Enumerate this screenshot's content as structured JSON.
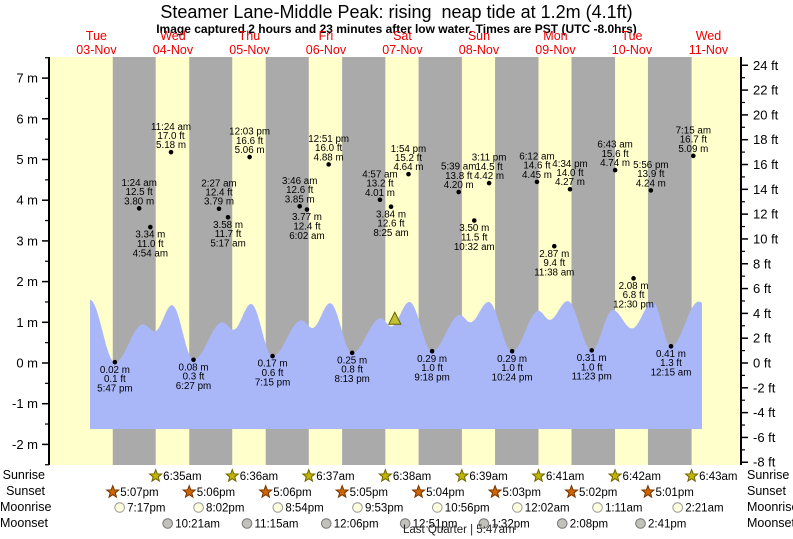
{
  "title": "Steamer Lane-Middle Peak: rising  neap tide at 1.2m (4.1ft)",
  "subtitle": "Image captured 2 hours and 23 minutes after low water. Times are PST (UTC -8.0hrs)",
  "days": [
    {
      "name": "Tue",
      "date": "03-Nov"
    },
    {
      "name": "Wed",
      "date": "04-Nov"
    },
    {
      "name": "Thu",
      "date": "05-Nov"
    },
    {
      "name": "Fri",
      "date": "06-Nov"
    },
    {
      "name": "Sat",
      "date": "07-Nov"
    },
    {
      "name": "Sun",
      "date": "08-Nov"
    },
    {
      "name": "Mon",
      "date": "09-Nov"
    },
    {
      "name": "Tue",
      "date": "10-Nov"
    },
    {
      "name": "Wed",
      "date": "11-Nov"
    }
  ],
  "row_labels": {
    "sunrise": "Sunrise",
    "sunset": "Sunset",
    "moonrise": "Moonrise",
    "moonset": "Moonset"
  },
  "moon_phase": "Last Quarter | 5:47am",
  "colors": {
    "day_bg": "#ffffcc",
    "night_bg": "#aaaaaa",
    "tide_fill": "#a9b7f8",
    "day_label": "#ee0000",
    "annotation": "#000000",
    "sunrise_star_fill": "#c3b400",
    "sunrise_star_stroke": "#6e6400",
    "sunset_star_fill": "#cc6600",
    "sunset_star_stroke": "#773300",
    "moonrise_circle_fill": "#ffffdd",
    "moonrise_circle_stroke": "#999999",
    "moonset_circle_fill": "#c2c2ba",
    "moonset_circle_stroke": "#777777",
    "current_marker_fill": "#c2c232",
    "current_marker_stroke": "#5f5f00"
  },
  "chart_data": {
    "type": "area",
    "title": "Steamer Lane-Middle Peak tide curve",
    "y_axis_left": {
      "unit": "m",
      "ticks": [
        7,
        6,
        5,
        4,
        3,
        2,
        1,
        0,
        -1,
        -2
      ],
      "minor_step": 0.5,
      "range": [
        -2.51,
        7.52
      ]
    },
    "y_axis_right": {
      "unit": "ft",
      "ticks": [
        24,
        22,
        20,
        18,
        16,
        14,
        12,
        10,
        8,
        6,
        4,
        2,
        0,
        -2,
        -4,
        -6,
        -8
      ],
      "minor_step": 1,
      "range": [
        -8.2,
        24.7
      ]
    },
    "x_axis": {
      "unit": "days",
      "start_day": "Tue 03-Nov",
      "end_day": "Wed 11-Nov"
    },
    "tide_curve_extremes": [
      {
        "t": 9.98,
        "h": 1.55
      },
      {
        "t": 17.783,
        "h": 0.02
      },
      {
        "t": 26.6,
        "h": 0.95
      },
      {
        "t": 30.3,
        "h": 0.78
      },
      {
        "t": 35.7,
        "h": 1.42
      },
      {
        "t": 42.45,
        "h": 0.08
      },
      {
        "t": 51.5,
        "h": 1.0
      },
      {
        "t": 55.0,
        "h": 0.82
      },
      {
        "t": 60.5,
        "h": 1.45
      },
      {
        "t": 67.25,
        "h": 0.17
      },
      {
        "t": 76.3,
        "h": 1.05
      },
      {
        "t": 79.75,
        "h": 0.86
      },
      {
        "t": 85.3,
        "h": 1.47
      },
      {
        "t": 92.217,
        "h": 0.25
      },
      {
        "t": 101.2,
        "h": 1.1
      },
      {
        "t": 104.5,
        "h": 0.9
      },
      {
        "t": 110.2,
        "h": 1.5
      },
      {
        "t": 117.3,
        "h": 0.29
      },
      {
        "t": 126.0,
        "h": 1.18
      },
      {
        "t": 129.3,
        "h": 1.0
      },
      {
        "t": 135.0,
        "h": 1.5
      },
      {
        "t": 142.4,
        "h": 0.29
      },
      {
        "t": 150.7,
        "h": 1.28
      },
      {
        "t": 154.2,
        "h": 1.06
      },
      {
        "t": 159.8,
        "h": 1.52
      },
      {
        "t": 167.383,
        "h": 0.31
      },
      {
        "t": 174.0,
        "h": 1.3
      },
      {
        "t": 180.0,
        "h": 0.85
      },
      {
        "t": 186.5,
        "h": 1.5
      },
      {
        "t": 192.25,
        "h": 0.41
      },
      {
        "t": 201.0,
        "h": 1.51
      },
      {
        "t": 202.0,
        "h": 1.48
      }
    ],
    "low_tide_annotations": [
      {
        "t": 17.783,
        "h": 0.02,
        "lines": [
          "0.02 m",
          "0.1 ft",
          "5:47 pm"
        ]
      },
      {
        "t": 42.45,
        "h": 0.08,
        "lines": [
          "0.08 m",
          "0.3 ft",
          "6:27 pm"
        ]
      },
      {
        "t": 67.25,
        "h": 0.17,
        "lines": [
          "0.17 m",
          "0.6 ft",
          "7:15 pm"
        ]
      },
      {
        "t": 92.217,
        "h": 0.25,
        "lines": [
          "0.25 m",
          "0.8 ft",
          "8:13 pm"
        ]
      },
      {
        "t": 117.3,
        "h": 0.29,
        "lines": [
          "0.29 m",
          "1.0 ft",
          "9:18 pm"
        ]
      },
      {
        "t": 142.4,
        "h": 0.29,
        "lines": [
          "0.29 m",
          "1.0 ft",
          "10:24 pm"
        ]
      },
      {
        "t": 167.383,
        "h": 0.31,
        "lines": [
          "0.31 m",
          "1.0 ft",
          "11:23 pm"
        ]
      },
      {
        "t": 192.25,
        "h": 0.41,
        "lines": [
          "0.41 m",
          "1.3 ft",
          "12:15 am"
        ]
      }
    ],
    "swell_annotations": [
      {
        "t": 25.4,
        "h": 3.8,
        "pos": "above",
        "lines": [
          "1:24 am",
          "12.5 ft",
          "3.80 m"
        ]
      },
      {
        "t": 28.9,
        "h": 3.34,
        "pos": "below",
        "lines": [
          "3.34 m",
          "11.0 ft",
          "4:54 am"
        ]
      },
      {
        "t": 35.4,
        "h": 5.18,
        "pos": "above",
        "lines": [
          "11:24 am",
          "17.0 ft",
          "5.18 m"
        ]
      },
      {
        "t": 50.45,
        "h": 3.79,
        "pos": "above",
        "lines": [
          "2:27 am",
          "12.4 ft",
          "3.79 m"
        ]
      },
      {
        "t": 53.283,
        "h": 3.58,
        "pos": "below",
        "lines": [
          "3.58 m",
          "11.7 ft",
          "5:17 am"
        ]
      },
      {
        "t": 60.05,
        "h": 5.06,
        "pos": "above",
        "lines": [
          "12:03 pm",
          "16.6 ft",
          "5.06 m"
        ]
      },
      {
        "t": 75.767,
        "h": 3.85,
        "pos": "above",
        "lines": [
          "3:46 am",
          "12.6 ft",
          "3.85 m"
        ]
      },
      {
        "t": 78.033,
        "h": 3.77,
        "pos": "below",
        "lines": [
          "3.77 m",
          "12.4 ft",
          "6:02 am"
        ]
      },
      {
        "t": 84.85,
        "h": 4.88,
        "pos": "above",
        "lines": [
          "12:51 pm",
          "16.0 ft",
          "4.88 m"
        ]
      },
      {
        "t": 100.95,
        "h": 4.01,
        "pos": "above",
        "lines": [
          "4:57 am",
          "13.2 ft",
          "4.01 m"
        ]
      },
      {
        "t": 104.417,
        "h": 3.84,
        "pos": "below",
        "lines": [
          "3.84 m",
          "12.6 ft",
          "8:25 am"
        ]
      },
      {
        "t": 109.9,
        "h": 4.64,
        "pos": "above",
        "lines": [
          "1:54 pm",
          "15.2 ft",
          "4.64 m"
        ]
      },
      {
        "t": 125.65,
        "h": 4.2,
        "pos": "above",
        "lines": [
          "5:39 am",
          "13.8 ft",
          "4.20 m"
        ]
      },
      {
        "t": 130.533,
        "h": 3.5,
        "pos": "below",
        "lines": [
          "3.50 m",
          "11.5 ft",
          "10:32 am"
        ]
      },
      {
        "t": 135.183,
        "h": 4.42,
        "pos": "above",
        "lines": [
          "3:11 pm",
          "14.5 ft",
          "4.42 m"
        ]
      },
      {
        "t": 150.2,
        "h": 4.45,
        "pos": "above",
        "lines": [
          "6:12 am",
          "14.6 ft",
          "4.45 m"
        ]
      },
      {
        "t": 155.633,
        "h": 2.87,
        "pos": "below",
        "lines": [
          "2.87 m",
          "9.4 ft",
          "11:38 am"
        ]
      },
      {
        "t": 160.567,
        "h": 4.27,
        "pos": "above",
        "lines": [
          "4:34 pm",
          "14.0 ft",
          "4.27 m"
        ]
      },
      {
        "t": 174.717,
        "h": 4.74,
        "pos": "above",
        "lines": [
          "6:43 am",
          "15.6 ft",
          "4.74 m"
        ]
      },
      {
        "t": 180.5,
        "h": 2.08,
        "pos": "below",
        "lines": [
          "2.08 m",
          "6.8 ft",
          "12:30 pm"
        ]
      },
      {
        "t": 185.933,
        "h": 4.24,
        "pos": "above",
        "lines": [
          "5:56 pm",
          "13.9 ft",
          "4.24 m"
        ]
      },
      {
        "t": 199.25,
        "h": 5.09,
        "pos": "above",
        "lines": [
          "7:15 am",
          "16.7 ft",
          "5.09 m"
        ]
      }
    ],
    "current_marker": {
      "t": 105.6,
      "tide": "1.2m (4.1ft)",
      "state": "rising neap tide"
    },
    "sunrise": [
      {
        "day": 1,
        "time": "6:35am",
        "hour": 6.583
      },
      {
        "day": 2,
        "time": "6:36am",
        "hour": 6.6
      },
      {
        "day": 3,
        "time": "6:37am",
        "hour": 6.617
      },
      {
        "day": 4,
        "time": "6:38am",
        "hour": 6.633
      },
      {
        "day": 5,
        "time": "6:39am",
        "hour": 6.65
      },
      {
        "day": 6,
        "time": "6:41am",
        "hour": 6.683
      },
      {
        "day": 7,
        "time": "6:42am",
        "hour": 6.7
      },
      {
        "day": 8,
        "time": "6:43am",
        "hour": 6.717
      }
    ],
    "sunset": [
      {
        "day": 0,
        "time": "5:07pm",
        "hour": 17.117
      },
      {
        "day": 1,
        "time": "5:06pm",
        "hour": 17.1
      },
      {
        "day": 2,
        "time": "5:06pm",
        "hour": 17.1
      },
      {
        "day": 3,
        "time": "5:05pm",
        "hour": 17.083
      },
      {
        "day": 4,
        "time": "5:04pm",
        "hour": 17.067
      },
      {
        "day": 5,
        "time": "5:03pm",
        "hour": 17.05
      },
      {
        "day": 6,
        "time": "5:02pm",
        "hour": 17.033
      },
      {
        "day": 7,
        "time": "5:01pm",
        "hour": 17.017
      }
    ],
    "moonrise": [
      {
        "day": 0,
        "time": "7:17pm",
        "hour": 19.283
      },
      {
        "day": 1,
        "time": "8:02pm",
        "hour": 20.033
      },
      {
        "day": 2,
        "time": "8:54pm",
        "hour": 20.9
      },
      {
        "day": 3,
        "time": "9:53pm",
        "hour": 21.883
      },
      {
        "day": 4,
        "time": "10:56pm",
        "hour": 22.933
      },
      {
        "day": 6,
        "time": "12:02am",
        "hour": 0.033
      },
      {
        "day": 7,
        "time": "1:11am",
        "hour": 1.183
      },
      {
        "day": 8,
        "time": "2:21am",
        "hour": 2.35
      }
    ],
    "moonset": [
      {
        "day": 1,
        "time": "10:21am",
        "hour": 10.35
      },
      {
        "day": 2,
        "time": "11:15am",
        "hour": 11.25
      },
      {
        "day": 3,
        "time": "12:06pm",
        "hour": 12.1
      },
      {
        "day": 4,
        "time": "12:51pm",
        "hour": 12.85
      },
      {
        "day": 5,
        "time": "1:32pm",
        "hour": 13.533
      },
      {
        "day": 6,
        "time": "2:08pm",
        "hour": 14.133
      },
      {
        "day": 7,
        "time": "2:41pm",
        "hour": 14.683
      }
    ]
  }
}
